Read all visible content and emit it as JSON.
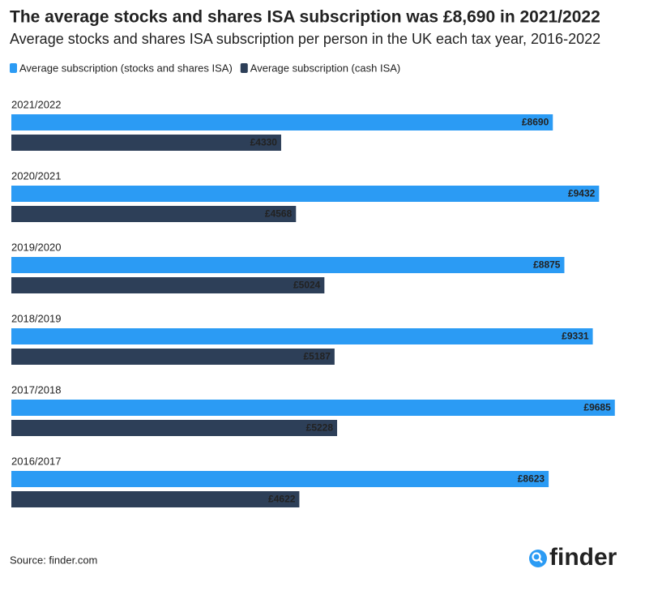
{
  "chart_data": {
    "type": "bar",
    "orientation": "horizontal",
    "title": "The average stocks and shares ISA subscription was £8,690 in 2021/2022",
    "subtitle": "Average stocks and shares ISA subscription per person in the UK each tax year, 2016-2022",
    "categories": [
      "2021/2022",
      "2020/2021",
      "2019/2020",
      "2018/2019",
      "2017/2018",
      "2016/2017"
    ],
    "series": [
      {
        "name": "Average subscription (stocks and shares ISA)",
        "color": "#2b9bf4",
        "values": [
          8690,
          9432,
          8875,
          9331,
          9685,
          8623
        ],
        "value_labels": [
          "£8690",
          "£9432",
          "£8875",
          "£9331",
          "£9685",
          "£8623"
        ]
      },
      {
        "name": "Average subscription (cash ISA)",
        "color": "#2d3f58",
        "values": [
          4330,
          4568,
          5024,
          5187,
          5228,
          4622
        ],
        "value_labels": [
          "£4330",
          "£4568",
          "£5024",
          "£5187",
          "£5228",
          "£4622"
        ]
      }
    ],
    "xlim": [
      0,
      10000
    ],
    "legend": "top-left",
    "source": "Source: finder.com",
    "logo": "finder"
  }
}
